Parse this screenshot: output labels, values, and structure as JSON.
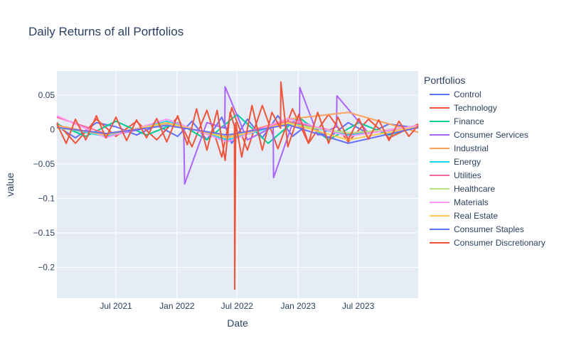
{
  "chart_data": {
    "type": "line",
    "title": "Daily Returns of all Portfolios",
    "xlabel": "Date",
    "ylabel": "value",
    "xlim": [
      "2021-01-04",
      "2023-12-29"
    ],
    "ylim": [
      -0.245,
      0.085
    ],
    "x_ticks": [
      {
        "date": "2021-07-01",
        "label": "Jul 2021"
      },
      {
        "date": "2022-01-01",
        "label": "Jan 2022"
      },
      {
        "date": "2022-07-01",
        "label": "Jul 2022"
      },
      {
        "date": "2023-01-01",
        "label": "Jan 2023"
      },
      {
        "date": "2023-07-01",
        "label": "Jul 2023"
      }
    ],
    "y_ticks": [
      {
        "value": 0.05,
        "label": "0.05"
      },
      {
        "value": 0,
        "label": "0"
      },
      {
        "value": -0.05,
        "label": "−0.05"
      },
      {
        "value": -0.1,
        "label": "−0.1"
      },
      {
        "value": -0.15,
        "label": "−0.15"
      },
      {
        "value": -0.2,
        "label": "−0.2"
      }
    ],
    "grid": true,
    "legend": {
      "title": "Portfolios",
      "position": "right"
    },
    "series": [
      {
        "name": "Control",
        "color": "#636efa",
        "x": [
          "2021-01-04",
          "2021-03-01",
          "2021-05-03",
          "2021-07-01",
          "2021-09-01",
          "2021-11-01",
          "2022-01-03",
          "2022-02-15",
          "2022-04-01",
          "2022-05-16",
          "2022-06-15",
          "2022-08-01",
          "2022-09-15",
          "2022-11-01",
          "2022-12-15",
          "2023-02-01",
          "2023-04-03",
          "2023-06-01",
          "2023-08-01",
          "2023-10-02",
          "2023-12-29"
        ],
        "values": [
          0.005,
          -0.012,
          0.01,
          0.004,
          -0.008,
          0.006,
          -0.01,
          0.012,
          -0.015,
          0.018,
          -0.02,
          0.015,
          -0.012,
          0.02,
          -0.01,
          0.008,
          -0.012,
          0.01,
          -0.006,
          0.008,
          0.002
        ]
      },
      {
        "name": "Technology",
        "color": "#ef553b",
        "x": [
          "2021-01-04",
          "2021-03-01",
          "2021-05-03",
          "2021-07-01",
          "2021-09-01",
          "2021-11-01",
          "2022-01-03",
          "2022-02-15",
          "2022-04-01",
          "2022-05-16",
          "2022-06-15",
          "2022-08-01",
          "2022-09-15",
          "2022-11-01",
          "2022-12-15",
          "2023-02-01",
          "2023-04-03",
          "2023-06-01",
          "2023-08-01",
          "2023-10-02",
          "2023-12-29"
        ],
        "values": [
          0.01,
          -0.02,
          0.015,
          -0.01,
          0.012,
          -0.015,
          0.018,
          -0.025,
          0.028,
          -0.04,
          0.032,
          -0.03,
          0.035,
          -0.028,
          0.03,
          -0.02,
          0.022,
          -0.018,
          0.015,
          -0.012,
          0.008
        ]
      },
      {
        "name": "Finance",
        "color": "#00cc96",
        "x": [
          "2021-01-04",
          "2021-04-01",
          "2021-07-01",
          "2021-10-01",
          "2022-01-03",
          "2022-04-01",
          "2022-07-01",
          "2022-10-03",
          "2023-01-03",
          "2023-04-03",
          "2023-07-03",
          "2023-10-02",
          "2023-12-29"
        ],
        "values": [
          0.008,
          -0.01,
          0.012,
          -0.008,
          0.01,
          -0.015,
          0.022,
          -0.02,
          0.018,
          -0.015,
          0.01,
          -0.008,
          0.005
        ]
      },
      {
        "name": "Consumer Services",
        "color": "#ab63fa",
        "x": [
          "2021-01-04",
          "2021-06-01",
          "2021-12-01",
          "2022-01-21",
          "2022-01-24",
          "2022-04-01",
          "2022-05-25",
          "2022-05-26",
          "2022-08-01",
          "2022-10-18",
          "2022-10-19",
          "2022-12-16",
          "2023-01-05",
          "2023-01-06",
          "2023-03-01",
          "2023-04-27",
          "2023-04-28",
          "2023-08-01",
          "2023-12-29"
        ],
        "values": [
          0.005,
          -0.01,
          0.008,
          0.005,
          -0.079,
          0.01,
          0.002,
          0.062,
          -0.015,
          0.004,
          -0.07,
          0.01,
          0.004,
          0.061,
          -0.008,
          0.004,
          0.049,
          -0.005,
          0.004
        ]
      },
      {
        "name": "Industrial",
        "color": "#ffa15a",
        "x": [
          "2021-01-04",
          "2021-06-01",
          "2021-12-01",
          "2022-06-01",
          "2022-12-01",
          "2023-06-01",
          "2023-12-29"
        ],
        "values": [
          0.006,
          -0.008,
          0.01,
          -0.012,
          0.015,
          0.025,
          -0.004
        ]
      },
      {
        "name": "Energy",
        "color": "#19d3f3",
        "x": [
          "2021-01-04",
          "2021-06-01",
          "2021-12-01",
          "2022-06-01",
          "2022-12-01",
          "2023-06-01",
          "2023-12-29"
        ],
        "values": [
          0.004,
          -0.01,
          0.012,
          -0.015,
          0.01,
          -0.008,
          0.005
        ]
      },
      {
        "name": "Utilities",
        "color": "#ff6692",
        "x": [
          "2021-01-04",
          "2021-06-01",
          "2021-12-01",
          "2022-06-01",
          "2022-12-01",
          "2023-06-01",
          "2023-12-29"
        ],
        "values": [
          0.018,
          -0.006,
          0.008,
          -0.01,
          0.012,
          -0.006,
          0.004
        ]
      },
      {
        "name": "Healthcare",
        "color": "#b6e880",
        "x": [
          "2021-01-04",
          "2021-06-01",
          "2021-12-01",
          "2022-06-01",
          "2022-12-01",
          "2023-06-01",
          "2023-12-29"
        ],
        "values": [
          0.002,
          -0.006,
          0.007,
          -0.009,
          0.008,
          -0.005,
          0.003
        ]
      },
      {
        "name": "Materials",
        "color": "#ff97ff",
        "x": [
          "2021-01-04",
          "2021-06-01",
          "2021-12-01",
          "2022-06-01",
          "2022-12-01",
          "2023-06-01",
          "2023-12-29"
        ],
        "values": [
          0.02,
          -0.012,
          0.015,
          -0.018,
          0.016,
          -0.01,
          0.006
        ]
      },
      {
        "name": "Real Estate",
        "color": "#fecb52",
        "x": [
          "2021-01-04",
          "2021-06-01",
          "2021-12-01",
          "2022-06-01",
          "2022-12-01",
          "2023-06-01",
          "2023-12-29"
        ],
        "values": [
          0.004,
          -0.008,
          0.01,
          -0.012,
          0.01,
          -0.015,
          0.004
        ]
      },
      {
        "name": "Consumer Staples",
        "color": "#636efa",
        "x": [
          "2021-01-04",
          "2021-06-01",
          "2021-12-01",
          "2022-06-01",
          "2022-12-01",
          "2023-06-01",
          "2023-12-29"
        ],
        "values": [
          0.003,
          -0.006,
          0.006,
          -0.008,
          0.007,
          -0.02,
          0.003
        ]
      },
      {
        "name": "Consumer Discretionary",
        "color": "#ef553b",
        "x": [
          "2021-01-04",
          "2021-02-01",
          "2021-03-01",
          "2021-04-01",
          "2021-05-03",
          "2021-06-01",
          "2021-07-01",
          "2021-08-02",
          "2021-09-01",
          "2021-10-01",
          "2021-11-01",
          "2021-12-01",
          "2022-01-03",
          "2022-02-01",
          "2022-03-01",
          "2022-04-01",
          "2022-05-02",
          "2022-05-26",
          "2022-06-10",
          "2022-06-23",
          "2022-06-24",
          "2022-06-27",
          "2022-07-15",
          "2022-08-15",
          "2022-09-15",
          "2022-10-14",
          "2022-11-09",
          "2022-11-10",
          "2022-12-01",
          "2023-01-03",
          "2023-02-01",
          "2023-03-01",
          "2023-04-03",
          "2023-05-01",
          "2023-06-01",
          "2023-07-03",
          "2023-08-01",
          "2023-09-01",
          "2023-10-02",
          "2023-11-01",
          "2023-12-01",
          "2023-12-29"
        ],
        "values": [
          0.008,
          -0.02,
          0.015,
          -0.015,
          0.02,
          -0.012,
          0.018,
          -0.016,
          0.014,
          -0.012,
          0.016,
          -0.018,
          0.02,
          -0.022,
          0.03,
          -0.03,
          0.028,
          -0.045,
          0.025,
          0.005,
          -0.232,
          0.01,
          -0.04,
          0.035,
          -0.03,
          0.025,
          0.002,
          0.069,
          -0.025,
          0.022,
          -0.02,
          0.025,
          -0.02,
          0.018,
          -0.015,
          0.016,
          -0.014,
          0.014,
          -0.016,
          0.012,
          -0.01,
          0.006
        ]
      }
    ]
  }
}
